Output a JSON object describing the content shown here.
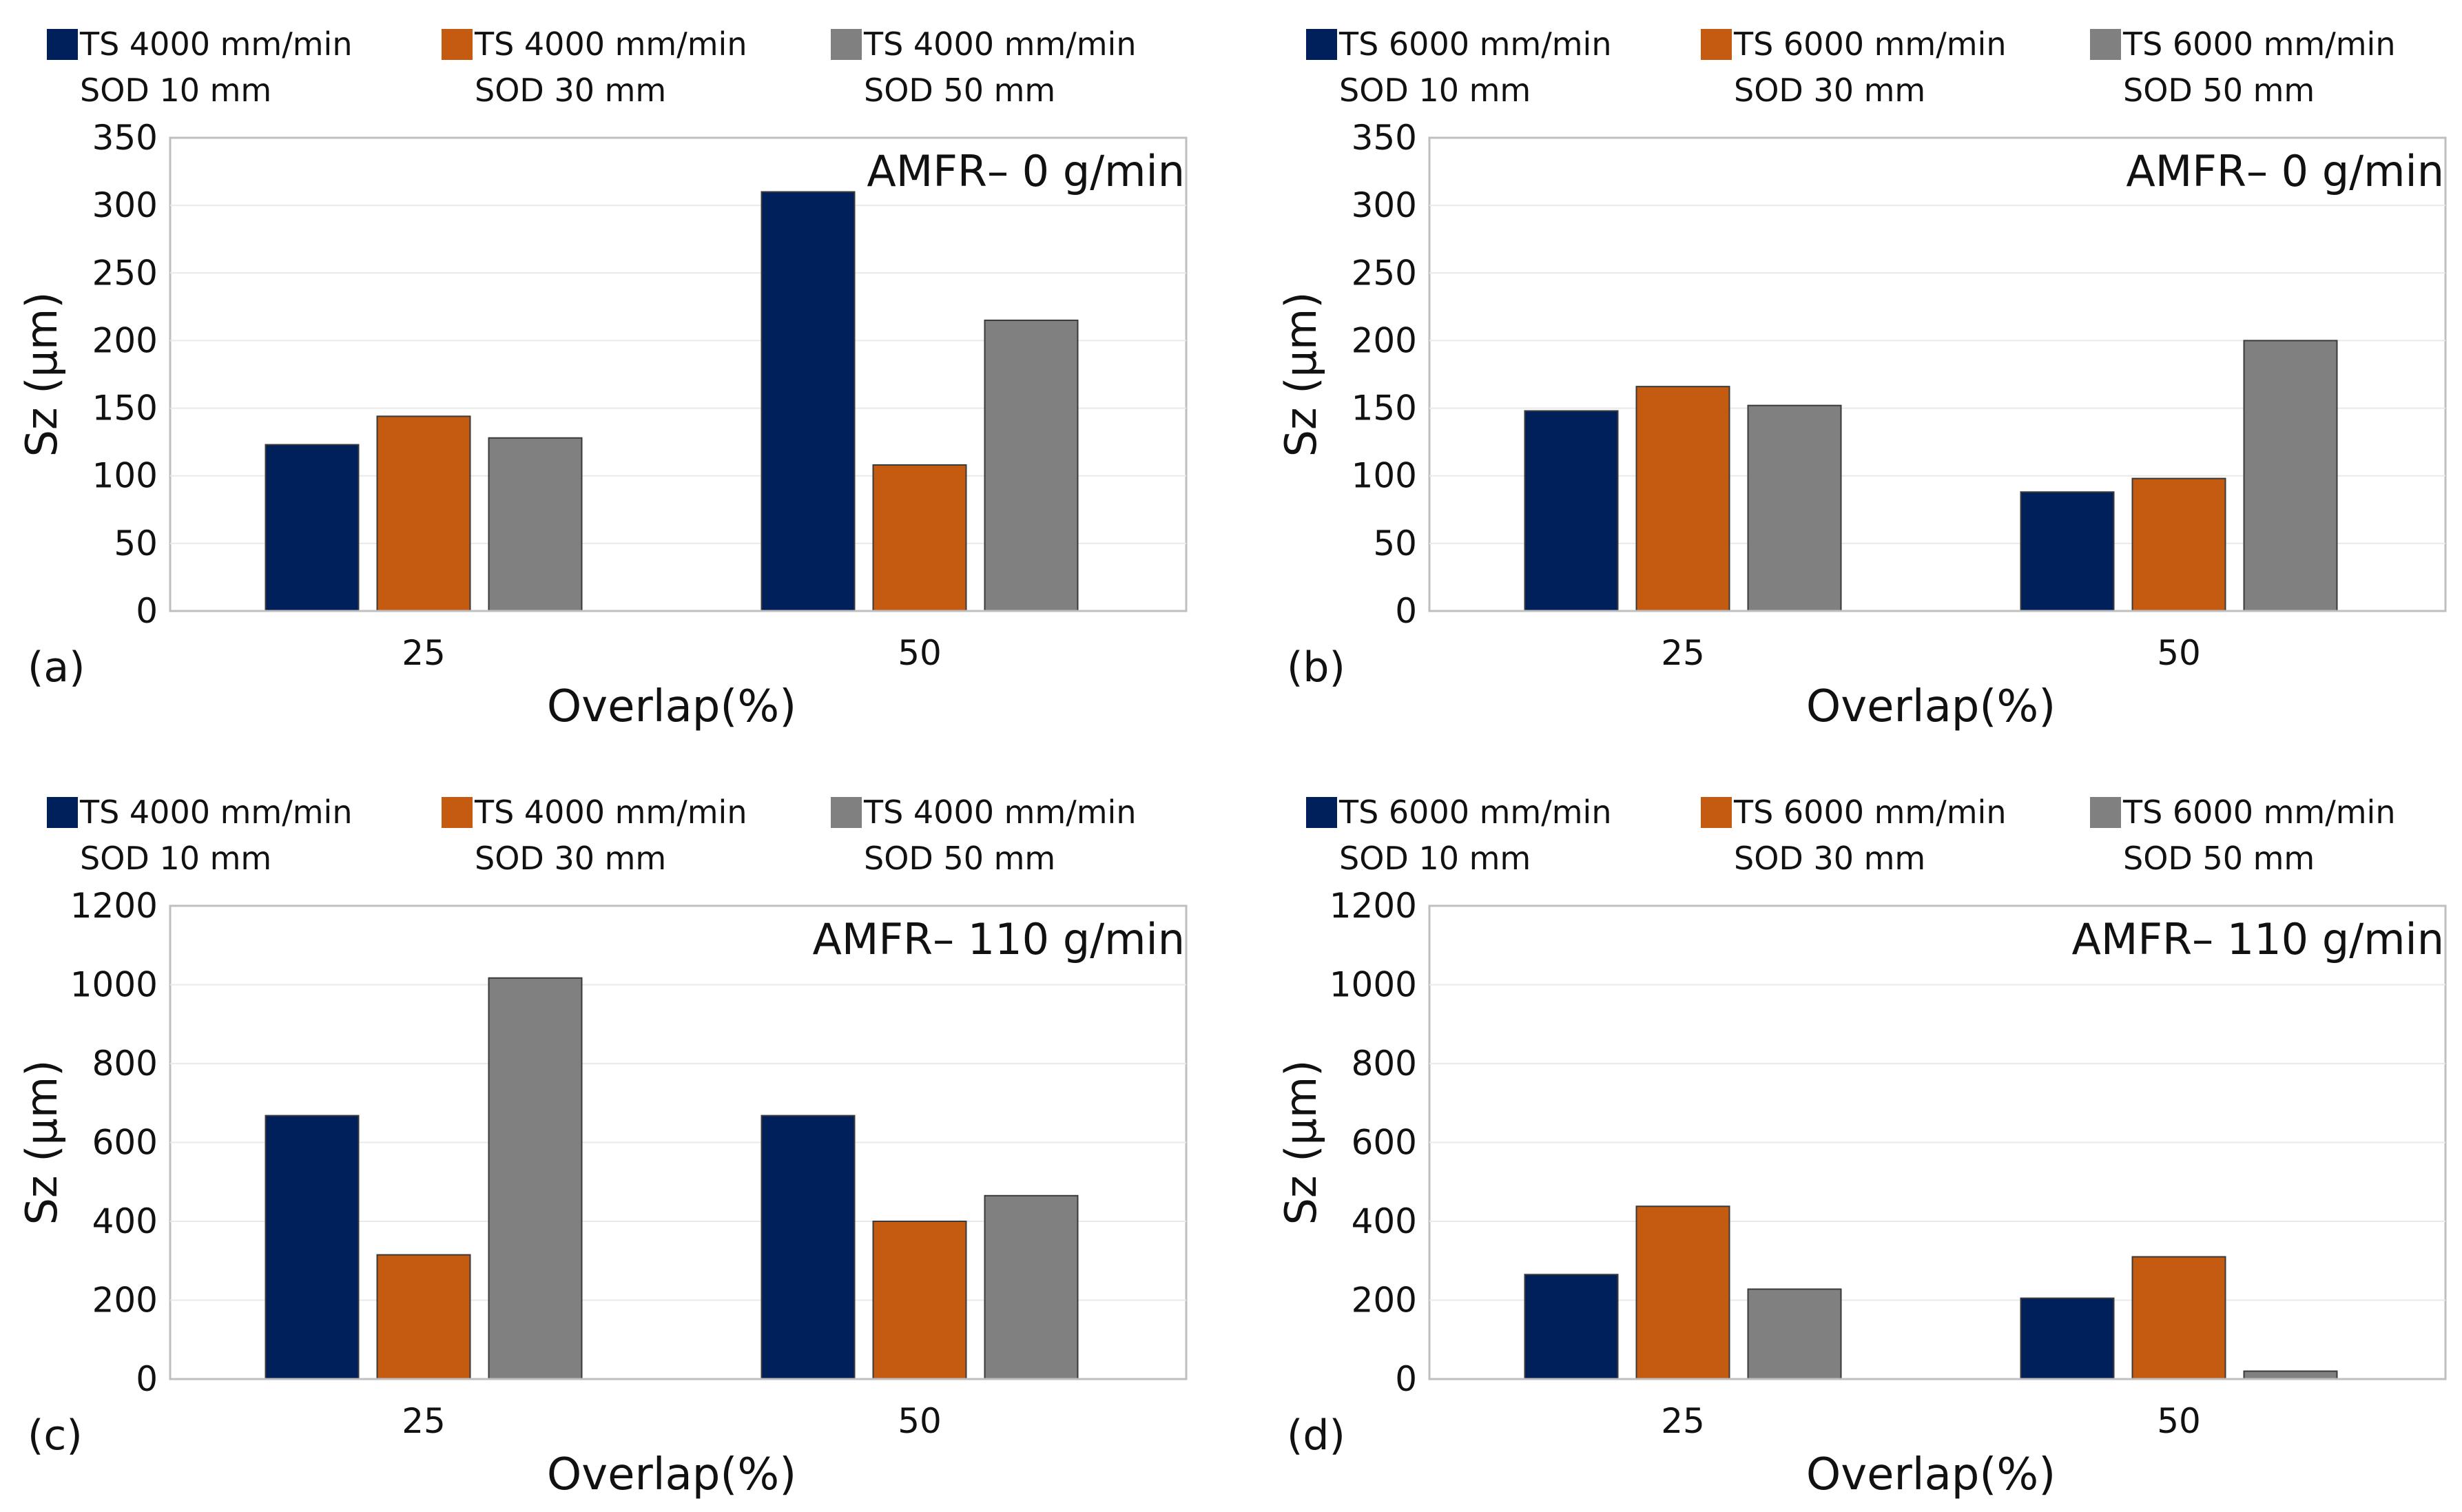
{
  "colors": {
    "navy": "#00205b",
    "orange": "#c55a11",
    "gray": "#808080",
    "grid": "#e9e9e9",
    "axis": "#bfbfbf"
  },
  "chart_data": [
    {
      "type": "bar",
      "panel_label": "(a)",
      "title": "AMFR– 0 g/min",
      "xlabel": "Overlap(%)",
      "ylabel": "Sz (µm)",
      "categories": [
        "25",
        "50"
      ],
      "ylim": [
        0,
        350
      ],
      "yticks": [
        0,
        50,
        100,
        150,
        200,
        250,
        300,
        350
      ],
      "legend": [
        {
          "l1": "TS    4000 mm/min",
          "l2": "SOD 10 mm",
          "color": "#00205b"
        },
        {
          "l1": "TS    4000 mm/min",
          "l2": "SOD 30 mm",
          "color": "#c55a11"
        },
        {
          "l1": "TS    4000 mm/min",
          "l2": "SOD 50 mm",
          "color": "#808080"
        }
      ],
      "series": [
        {
          "name": "TS 4000 mm/min SOD 10 mm",
          "values": [
            123,
            310
          ]
        },
        {
          "name": "TS 4000 mm/min SOD 30 mm",
          "values": [
            144,
            108
          ]
        },
        {
          "name": "TS 4000 mm/min SOD 50 mm",
          "values": [
            128,
            215
          ]
        }
      ]
    },
    {
      "type": "bar",
      "panel_label": "(b)",
      "title": "AMFR– 0 g/min",
      "xlabel": "Overlap(%)",
      "ylabel": "Sz (µm)",
      "categories": [
        "25",
        "50"
      ],
      "ylim": [
        0,
        350
      ],
      "yticks": [
        0,
        50,
        100,
        150,
        200,
        250,
        300,
        350
      ],
      "legend": [
        {
          "l1": "TS    6000 mm/min",
          "l2": "SOD 10 mm",
          "color": "#00205b"
        },
        {
          "l1": "TS    6000 mm/min",
          "l2": "SOD 30 mm",
          "color": "#c55a11"
        },
        {
          "l1": "TS    6000 mm/min",
          "l2": "SOD 50 mm",
          "color": "#808080"
        }
      ],
      "series": [
        {
          "name": "TS 6000 mm/min SOD 10 mm",
          "values": [
            148,
            88
          ]
        },
        {
          "name": "TS 6000 mm/min SOD 30 mm",
          "values": [
            166,
            98
          ]
        },
        {
          "name": "TS 6000 mm/min SOD 50 mm",
          "values": [
            152,
            200
          ]
        }
      ]
    },
    {
      "type": "bar",
      "panel_label": "(c)",
      "title": "AMFR– 110 g/min",
      "xlabel": "Overlap(%)",
      "ylabel": "Sz (µm)",
      "categories": [
        "25",
        "50"
      ],
      "ylim": [
        0,
        1200
      ],
      "yticks": [
        0,
        200,
        400,
        600,
        800,
        1000,
        1200
      ],
      "legend": [
        {
          "l1": "TS    4000 mm/min",
          "l2": "SOD 10 mm",
          "color": "#00205b"
        },
        {
          "l1": "TS    4000 mm/min",
          "l2": "SOD 30 mm",
          "color": "#c55a11"
        },
        {
          "l1": "TS    4000 mm/min",
          "l2": "SOD 50 mm",
          "color": "#808080"
        }
      ],
      "series": [
        {
          "name": "TS 4000 mm/min SOD 10 mm",
          "values": [
            668,
            668
          ]
        },
        {
          "name": "TS 4000 mm/min SOD 30 mm",
          "values": [
            315,
            400
          ]
        },
        {
          "name": "TS 4000 mm/min SOD 50 mm",
          "values": [
            1017,
            465
          ]
        }
      ]
    },
    {
      "type": "bar",
      "panel_label": "(d)",
      "title": "AMFR– 110 g/min",
      "xlabel": "Overlap(%)",
      "ylabel": "Sz (µm)",
      "categories": [
        "25",
        "50"
      ],
      "ylim": [
        0,
        1200
      ],
      "yticks": [
        0,
        200,
        400,
        600,
        800,
        1000,
        1200
      ],
      "legend": [
        {
          "l1": "TS    6000 mm/min",
          "l2": "SOD 10 mm",
          "color": "#00205b"
        },
        {
          "l1": "TS    6000 mm/min",
          "l2": "SOD 30 mm",
          "color": "#c55a11"
        },
        {
          "l1": "TS    6000 mm/min",
          "l2": "SOD 50 mm",
          "color": "#808080"
        }
      ],
      "series": [
        {
          "name": "TS 6000 mm/min SOD 10 mm",
          "values": [
            265,
            205
          ]
        },
        {
          "name": "TS 6000 mm/min SOD 30 mm",
          "values": [
            438,
            310
          ]
        },
        {
          "name": "TS 6000 mm/min SOD 50 mm",
          "values": [
            228,
            20
          ]
        }
      ]
    }
  ]
}
